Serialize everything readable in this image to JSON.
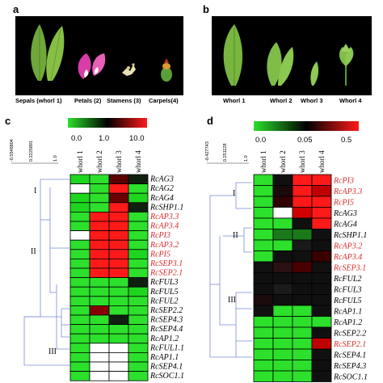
{
  "panels": {
    "a": {
      "letter": "a",
      "captions": [
        "Sepals (whorl 1)",
        "Petals (2)",
        "Stamens (3)",
        "Carpels(4)"
      ]
    },
    "b": {
      "letter": "b",
      "captions": [
        "Whorl 1",
        "Whorl 2",
        "Whorl 3",
        "Whorl 4"
      ]
    },
    "c": {
      "letter": "c",
      "colorbar_ticks": [
        "0.0",
        "1.0",
        "10.0"
      ],
      "columns": [
        "whorl 1",
        "whorl 2",
        "whorl 3",
        "whorl 4"
      ],
      "scale_labels": [
        "-0.5548804",
        "0.2225891",
        "1.0"
      ],
      "clusters": [
        "I",
        "II",
        "III"
      ],
      "genes": [
        {
          "name": "RcAG3",
          "red": false
        },
        {
          "name": "RcAG2",
          "red": false
        },
        {
          "name": "RcAG4",
          "red": false
        },
        {
          "name": "RcSHP1.1",
          "red": false
        },
        {
          "name": "RcAP3.3",
          "red": true
        },
        {
          "name": "RcAP3.4",
          "red": true
        },
        {
          "name": "RcPI3",
          "red": true
        },
        {
          "name": "RcAP3.2",
          "red": true
        },
        {
          "name": "RcPI5",
          "red": true
        },
        {
          "name": "RcSEP3.1",
          "red": true
        },
        {
          "name": "RcSEP2.1",
          "red": true
        },
        {
          "name": "RcFUL3",
          "red": false
        },
        {
          "name": "RcFUL5",
          "red": false
        },
        {
          "name": "RcFUL2",
          "red": false
        },
        {
          "name": "RcSEP2.2",
          "red": false
        },
        {
          "name": "RcSEP4.3",
          "red": false
        },
        {
          "name": "RcSEP4.4",
          "red": false
        },
        {
          "name": "RcAP1.2",
          "red": false
        },
        {
          "name": "RcFUL1.1",
          "red": false
        },
        {
          "name": "RcAP1.1",
          "red": false
        },
        {
          "name": "RcSEP4.1",
          "red": false
        },
        {
          "name": "RcSOC1.1",
          "red": false
        }
      ],
      "cells": [
        [
          "#1fd61f",
          "#2ce02c",
          "#5a0000",
          "#102010"
        ],
        [
          "#ffffff",
          "#2ce02c",
          "#ff1a1a",
          "#2ce02c"
        ],
        [
          "#1fd61f",
          "#2ce02c",
          "#6a0000",
          "#1fd61f"
        ],
        [
          "#1fd61f",
          "#2ce02c",
          "#ff1a1a",
          "#102010"
        ],
        [
          "#2ce02c",
          "#ff1a1a",
          "#ff1a1a",
          "#2ce02c"
        ],
        [
          "#2ce02c",
          "#ff1a1a",
          "#ff1a1a",
          "#2ce02c"
        ],
        [
          "#ffffff",
          "#ff1a1a",
          "#ff1a1a",
          "#2ce02c"
        ],
        [
          "#2ce02c",
          "#ff1a1a",
          "#ff1a1a",
          "#2ce02c"
        ],
        [
          "#2ce02c",
          "#ff1a1a",
          "#ff1a1a",
          "#1fd61f"
        ],
        [
          "#2ce02c",
          "#ff1a1a",
          "#ff1a1a",
          "#2ce02c"
        ],
        [
          "#2ce02c",
          "#ff1a1a",
          "#ff1a1a",
          "#2ce02c"
        ],
        [
          "#2ce02c",
          "#2ce02c",
          "#2ce02c",
          "#102010"
        ],
        [
          "#2ce02c",
          "#2ce02c",
          "#2ce02c",
          "#1fd61f"
        ],
        [
          "#2ce02c",
          "#2ce02c",
          "#2ce02c",
          "#2ce02c"
        ],
        [
          "#2ce02c",
          "#8a0000",
          "#2ce02c",
          "#2ce02c"
        ],
        [
          "#2ce02c",
          "#2ce02c",
          "#102010",
          "#2ce02c"
        ],
        [
          "#2ce02c",
          "#2ce02c",
          "#2ce02c",
          "#2ce02c"
        ],
        [
          "#2ce02c",
          "#2ce02c",
          "#2ce02c",
          "#2ce02c"
        ],
        [
          "#2ce02c",
          "#ffffff",
          "#ffffff",
          "#2ce02c"
        ],
        [
          "#2ce02c",
          "#ffffff",
          "#ffffff",
          "#2ce02c"
        ],
        [
          "#2ce02c",
          "#ffffff",
          "#ffffff",
          "#2ce02c"
        ],
        [
          "#2ce02c",
          "#ffffff",
          "#ffffff",
          "#2ce02c"
        ]
      ]
    },
    "d": {
      "letter": "d",
      "colorbar_ticks": [
        "0.0",
        "0.05",
        "0.5"
      ],
      "columns": [
        "whorl 1",
        "whorl 2",
        "whorl 3",
        "whorl 4"
      ],
      "scale_labels": [
        "-0.427743",
        "0.251128",
        "1.0"
      ],
      "clusters": [
        "I",
        "II",
        "III"
      ],
      "genes": [
        {
          "name": "RcPI3",
          "red": true
        },
        {
          "name": "RcAP3.3",
          "red": true
        },
        {
          "name": "RcPI5",
          "red": true
        },
        {
          "name": "RcAG3",
          "red": false
        },
        {
          "name": "RcAG4",
          "red": false
        },
        {
          "name": "RcSHP1.1",
          "red": false
        },
        {
          "name": "RcAP3.2",
          "red": true
        },
        {
          "name": "RcAP3.4",
          "red": true
        },
        {
          "name": "RcSEP3.1",
          "red": true
        },
        {
          "name": "RcFUL2",
          "red": false
        },
        {
          "name": "RcFUL3",
          "red": false
        },
        {
          "name": "RcFUL5",
          "red": false
        },
        {
          "name": "RcAP1.1",
          "red": false
        },
        {
          "name": "RcAP1.2",
          "red": false
        },
        {
          "name": "RcSEP2.2",
          "red": false
        },
        {
          "name": "RcSEP2.1",
          "red": true
        },
        {
          "name": "RcSEP4.1",
          "red": false
        },
        {
          "name": "RcSEP4.3",
          "red": false
        },
        {
          "name": "RcSOC1.1",
          "red": false
        }
      ],
      "cells": [
        [
          "#2ce02c",
          "#101010",
          "#ff1a1a",
          "#ff1a1a"
        ],
        [
          "#2ce02c",
          "#1a0a0a",
          "#ff1a1a",
          "#c00000"
        ],
        [
          "#2ce02c",
          "#300000",
          "#ff1a1a",
          "#ff1a1a"
        ],
        [
          "#2ce02c",
          "#ffffff",
          "#d00000",
          "#ff1a1a"
        ],
        [
          "#2ce02c",
          "#2ce02c",
          "#101010",
          "#ff1a1a"
        ],
        [
          "#2ce02c",
          "#1a7a1a",
          "#1a7a1a",
          "#101010"
        ],
        [
          "#2ce02c",
          "#2ce02c",
          "#1a1a1a",
          "#101010"
        ],
        [
          "#2ce02c",
          "#101010",
          "#101010",
          "#3a0000"
        ],
        [
          "#101010",
          "#2a1010",
          "#4a0000",
          "#101010"
        ],
        [
          "#101010",
          "#101010",
          "#101010",
          "#101010"
        ],
        [
          "#101010",
          "#1a1a1a",
          "#101010",
          "#101010"
        ],
        [
          "#1a0a0a",
          "#101010",
          "#101010",
          "#101010"
        ],
        [
          "#101010",
          "#2ce02c",
          "#2ce02c",
          "#101010"
        ],
        [
          "#2ce02c",
          "#2ce02c",
          "#2ce02c",
          "#2ce02c"
        ],
        [
          "#2ce02c",
          "#2ce02c",
          "#2ce02c",
          "#101010"
        ],
        [
          "#2ce02c",
          "#2ce02c",
          "#2ce02c",
          "#c00000"
        ],
        [
          "#2ce02c",
          "#2ce02c",
          "#2ce02c",
          "#101010"
        ],
        [
          "#2ce02c",
          "#2ce02c",
          "#2ce02c",
          "#101010"
        ],
        [
          "#2ce02c",
          "#2ce02c",
          "#2ce02c",
          "#101010"
        ]
      ]
    }
  }
}
